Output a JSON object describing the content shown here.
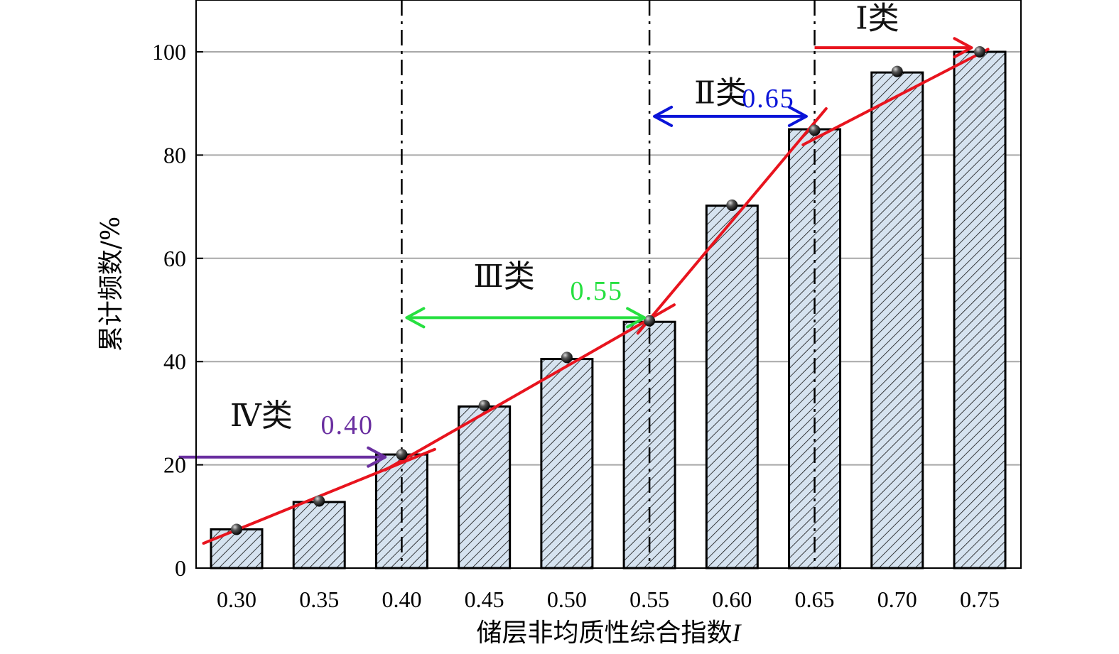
{
  "chart_data": {
    "type": "bar",
    "xlabel": "储层非均质性综合指数",
    "xlabel_var": "I",
    "ylabel": "累计频数/%",
    "ylim": [
      0,
      110
    ],
    "yticks": [
      "0",
      "20",
      "40",
      "60",
      "80",
      "100"
    ],
    "grid": true,
    "categories": [
      "0.30",
      "0.35",
      "0.40",
      "0.45",
      "0.50",
      "0.55",
      "0.60",
      "0.65",
      "0.70",
      "0.75"
    ],
    "values": [
      7.5,
      12.8,
      22.0,
      31.3,
      40.5,
      47.7,
      70.2,
      85.0,
      96.0,
      100.0
    ],
    "points": [
      7.5,
      13.0,
      22.0,
      31.5,
      40.8,
      47.9,
      70.3,
      84.8,
      96.2,
      100.0
    ],
    "bar_fill": "#d6e3f0",
    "bar_hatch": "#111111",
    "fit_color": "#e8141e",
    "fit_segments": [
      {
        "from": [
          0.28,
          4.8
        ],
        "to": [
          0.42,
          23.0
        ]
      },
      {
        "from": [
          0.39,
          19.0
        ],
        "to": [
          0.565,
          51.0
        ]
      },
      {
        "from": [
          0.543,
          45.5
        ],
        "to": [
          0.657,
          89.0
        ]
      },
      {
        "from": [
          0.643,
          82.0
        ],
        "to": [
          0.755,
          100.5
        ]
      }
    ],
    "dividers": [
      0.4,
      0.55,
      0.65
    ],
    "zones": [
      {
        "label": "Ⅳ类",
        "x": 0.315,
        "y": 27.5,
        "arrow": {
          "x1": 0.265,
          "x2": 0.39,
          "y": 21.5,
          "double": false
        },
        "color": "#6a2fa0"
      },
      {
        "label": "Ⅲ类",
        "x": 0.462,
        "y": 54.5,
        "arrow": {
          "x1": 0.403,
          "x2": 0.547,
          "y": 48.5,
          "double": true
        },
        "color": "#26e040"
      },
      {
        "label": "Ⅱ类",
        "x": 0.593,
        "y": 90.0,
        "arrow": {
          "x1": 0.553,
          "x2": 0.645,
          "y": 87.5,
          "double": true
        },
        "color": "#0a14d8"
      },
      {
        "label": "Ⅰ类",
        "x": 0.688,
        "y": 104.5,
        "arrow": {
          "x1": 0.65,
          "x2": 0.745,
          "y": 100.8,
          "double": false
        },
        "color": "#e8141e"
      }
    ],
    "thresholds": [
      {
        "text": "0.40",
        "x": 0.367,
        "y": 26.0,
        "color": "#6a2fa0"
      },
      {
        "text": "0.55",
        "x": 0.518,
        "y": 52.0,
        "color": "#26e040"
      },
      {
        "text": "0.65",
        "x": 0.622,
        "y": 89.3,
        "color": "#0a14d8"
      }
    ]
  }
}
